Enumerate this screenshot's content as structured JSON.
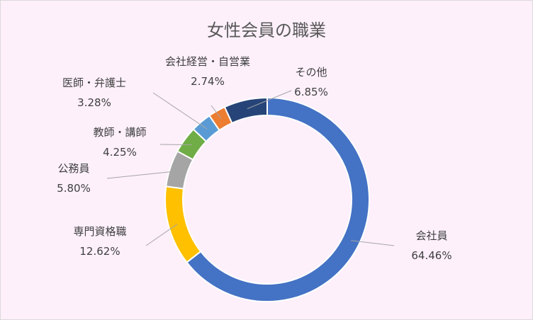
{
  "chart_data": {
    "type": "pie",
    "subtype": "donut",
    "title": "女性会員の職業",
    "legend": "none",
    "slices": [
      {
        "name": "会社員",
        "value": 64.46,
        "label": "64.46%",
        "color": "#4472c4"
      },
      {
        "name": "専門資格職",
        "value": 12.62,
        "label": "12.62%",
        "color": "#ffc000"
      },
      {
        "name": "公務員",
        "value": 5.8,
        "label": "5.80%",
        "color": "#a5a5a5"
      },
      {
        "name": "教師・講師",
        "value": 4.25,
        "label": "4.25%",
        "color": "#70ad47"
      },
      {
        "name": "医師・弁護士",
        "value": 3.28,
        "label": "3.28%",
        "color": "#5b9bd5"
      },
      {
        "name": "会社経営・自営業",
        "value": 2.74,
        "label": "2.74%",
        "color": "#ed7d31"
      },
      {
        "name": "その他",
        "value": 6.85,
        "label": "6.85%",
        "color": "#264478"
      }
    ]
  },
  "colors": {
    "background": "#fdf0fb",
    "border": "#d9d9d9",
    "leader_line": "#a6a6a6",
    "text": "#404040"
  }
}
